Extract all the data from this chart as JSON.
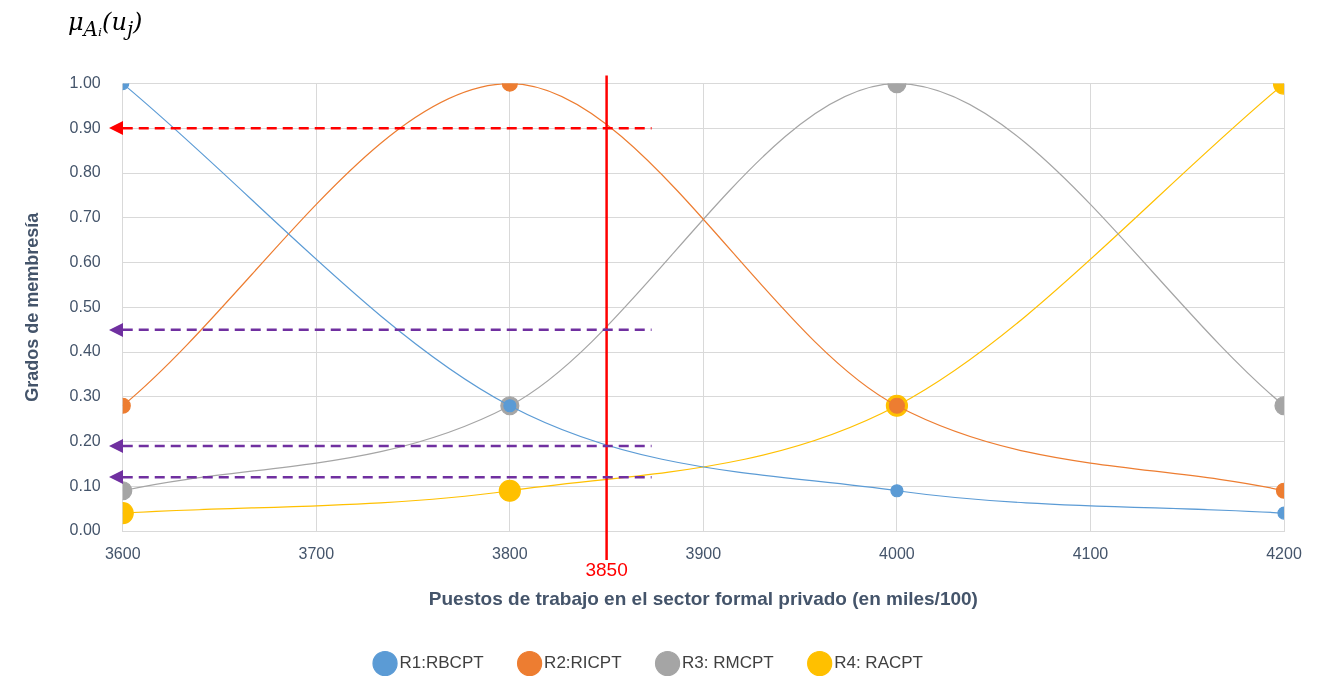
{
  "chart_data": {
    "type": "line",
    "annotations": [
      "μ$_{Aᵢ}$(u$_{j}$)"
    ],
    "xlabel": "Puestos de trabajo en el sector formal privado (en miles/100)",
    "ylabel": "Grados de membresía",
    "x": [
      3600,
      3800,
      4000,
      4200
    ],
    "series": [
      {
        "name": "R1:RBCPT",
        "color": "#5b9bd5",
        "values": [
          1.0,
          0.28,
          0.09,
          0.04
        ]
      },
      {
        "name": "R2:RICPT",
        "color": "#ed7d31",
        "values": [
          0.28,
          1.0,
          0.28,
          0.09
        ]
      },
      {
        "name": "R3: RMCPT",
        "color": "#a5a5a5",
        "values": [
          0.09,
          0.28,
          1.0,
          0.28
        ]
      },
      {
        "name": "R4: RACPT",
        "color": "#ffc000",
        "values": [
          0.04,
          0.09,
          0.28,
          1.0
        ]
      }
    ],
    "xlim": [
      3600,
      4200
    ],
    "xticks": [
      3600,
      3700,
      3800,
      3900,
      4000,
      4100,
      4200
    ],
    "ylim": [
      0,
      1
    ],
    "yticks": [
      {
        "value": 0,
        "label": "0.00"
      },
      {
        "value": 0.1,
        "label": "0.10"
      },
      {
        "value": 0.2,
        "label": "0.20"
      },
      {
        "value": 0.3,
        "label": "0.30"
      },
      {
        "value": 0.4,
        "label": "0.40"
      },
      {
        "value": 0.5,
        "label": "0.50"
      },
      {
        "value": 0.6,
        "label": "0.60"
      },
      {
        "value": 0.7,
        "label": "0.70"
      },
      {
        "value": 0.8,
        "label": "0.80"
      },
      {
        "value": 0.9,
        "label": "0.90"
      },
      {
        "value": 1,
        "label": "1.00"
      }
    ],
    "ref_lines": [
      {
        "axis": "x",
        "value": 3850,
        "label": "3850",
        "color": "#ff0000",
        "line_style": "solid"
      },
      {
        "axis": "y",
        "value": 0.9,
        "color": "#ff0000",
        "line_style": "dashed"
      },
      {
        "axis": "y",
        "value": 0.45,
        "color": "#7030a0",
        "line_style": "dashed"
      },
      {
        "axis": "y",
        "value": 0.19,
        "color": "#7030a0",
        "line_style": "dashed"
      },
      {
        "axis": "y",
        "value": 0.12,
        "color": "#7030a0",
        "line_style": "dashed"
      }
    ],
    "grid": true,
    "legend": "bottom",
    "marker": "circle",
    "line_style": "solid"
  }
}
